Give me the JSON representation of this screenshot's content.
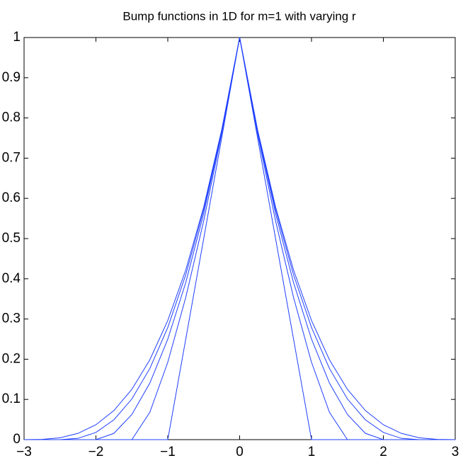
{
  "chart_data": {
    "type": "line",
    "title": "Bump functions in 1D for m=1 with varying r",
    "x": [
      -3,
      -2.75,
      -2.5,
      -2.25,
      -2,
      -1.75,
      -1.5,
      -1.25,
      -1,
      -0.75,
      -0.5,
      -0.25,
      0,
      0.25,
      0.5,
      0.75,
      1,
      1.25,
      1.5,
      1.75,
      2,
      2.25,
      2.5,
      2.75,
      3
    ],
    "series": [
      {
        "color": "#1f3fff",
        "values": [
          0,
          0,
          0,
          0,
          0,
          0,
          0,
          0,
          0,
          0.25,
          0.5,
          0.75,
          1,
          0.75,
          0.5,
          0.25,
          0,
          0,
          0,
          0,
          0,
          0,
          0,
          0,
          0
        ]
      },
      {
        "color": "#1f3fff",
        "values": [
          0,
          0,
          0,
          0,
          0,
          0,
          0,
          0.068,
          0.1925,
          0.3536,
          0.5443,
          0.7607,
          1,
          0.7607,
          0.5443,
          0.3536,
          0.1925,
          0.068,
          0,
          0,
          0,
          0,
          0,
          0,
          0
        ]
      },
      {
        "color": "#1f3fff",
        "values": [
          0,
          0,
          0,
          0,
          0,
          0.0156,
          0.0625,
          0.1406,
          0.25,
          0.3906,
          0.5625,
          0.7656,
          1,
          0.7656,
          0.5625,
          0.3906,
          0.25,
          0.1406,
          0.0625,
          0.0156,
          0,
          0,
          0,
          0,
          0
        ]
      },
      {
        "color": "#1f3fff",
        "values": [
          0,
          0,
          0,
          0.0032,
          0.0179,
          0.0493,
          0.1012,
          0.1768,
          0.2789,
          0.41,
          0.5724,
          0.7684,
          1,
          0.7684,
          0.5724,
          0.41,
          0.2789,
          0.1768,
          0.1012,
          0.0493,
          0.0179,
          0.0032,
          0,
          0,
          0
        ]
      },
      {
        "color": "#1f3fff",
        "values": [
          0,
          0.0006,
          0.0046,
          0.0156,
          0.037,
          0.0723,
          0.125,
          0.1985,
          0.2963,
          0.4219,
          0.5787,
          0.7703,
          1,
          0.7703,
          0.5787,
          0.4219,
          0.2963,
          0.1985,
          0.125,
          0.0723,
          0.037,
          0.0156,
          0.0046,
          0.0006,
          0
        ]
      }
    ],
    "xlim": [
      -3,
      3
    ],
    "xticks": [
      {
        "value": -3,
        "label": "−3"
      },
      {
        "value": -2,
        "label": "−2"
      },
      {
        "value": -1,
        "label": "−1"
      },
      0,
      1,
      2,
      3
    ],
    "ylim": [
      0,
      1
    ],
    "yticks": [
      0,
      0.1,
      0.2,
      0.3,
      0.4,
      0.5,
      0.6,
      0.7,
      0.8,
      0.9,
      1
    ],
    "grid": false
  }
}
